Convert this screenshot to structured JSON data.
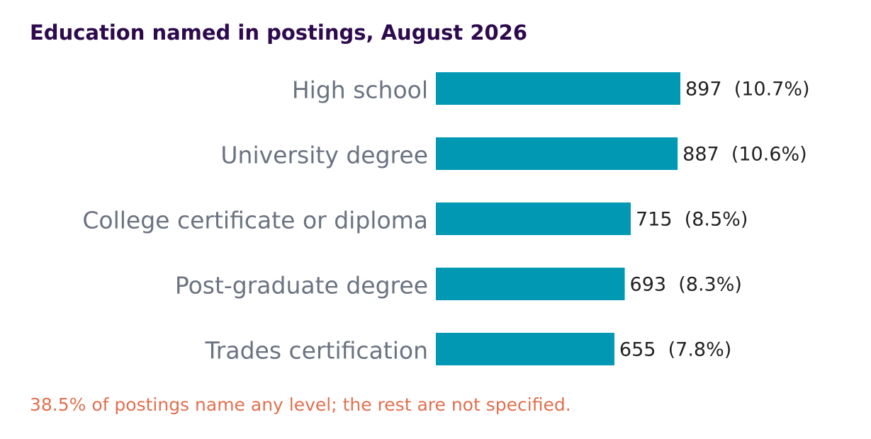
{
  "chart_data": {
    "type": "bar",
    "orientation": "horizontal",
    "title": "Education named in postings, August 2026",
    "categories": [
      "High school",
      "University degree",
      "College certificate or diploma",
      "Post-graduate degree",
      "Trades certification"
    ],
    "values": [
      897,
      887,
      715,
      693,
      655
    ],
    "value_labels": [
      "897  (10.7%)",
      "887  (10.6%)",
      "715  (8.5%)",
      "693  (8.3%)",
      "655  (7.8%)"
    ],
    "color": "#0098b3",
    "note": "38.5% of postings name any level; the rest are not specified."
  }
}
